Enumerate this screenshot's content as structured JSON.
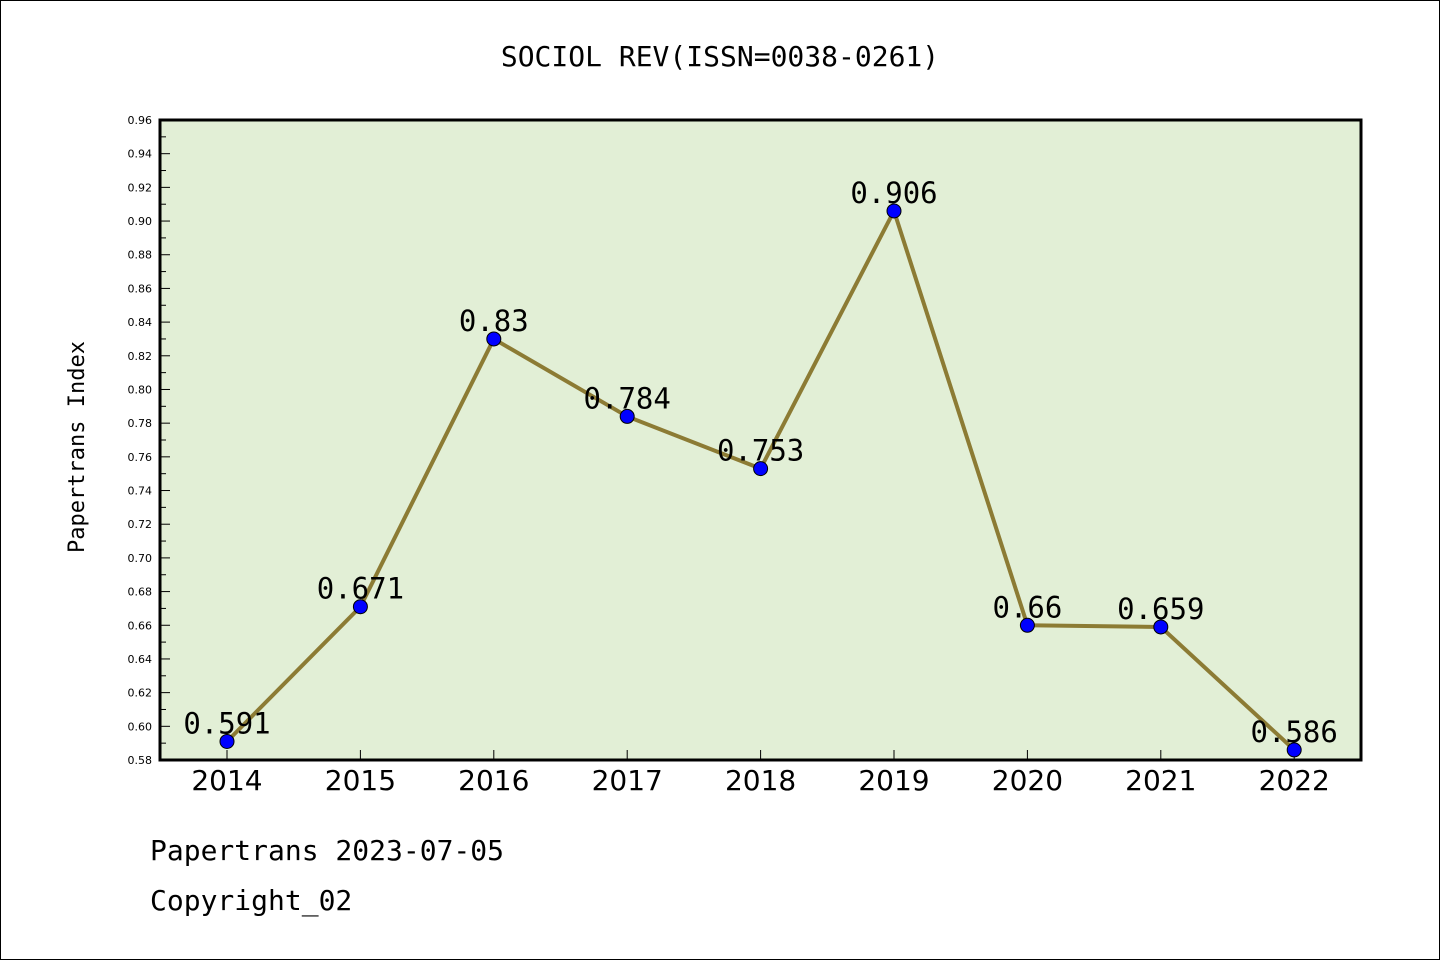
{
  "chart_data": {
    "type": "line",
    "title": "SOCIOL REV(ISSN=0038-0261)",
    "xlabel": "",
    "ylabel": "Papertrans Index",
    "categories": [
      "2014",
      "2015",
      "2016",
      "2017",
      "2018",
      "2019",
      "2020",
      "2021",
      "2022"
    ],
    "series": [
      {
        "values": [
          0.591,
          0.671,
          0.83,
          0.784,
          0.753,
          0.906,
          0.66,
          0.659,
          0.586
        ],
        "labels": [
          "0.591",
          "0.671",
          "0.83",
          "0.784",
          "0.753",
          "0.906",
          "0.66",
          "0.659",
          "0.586"
        ]
      }
    ],
    "ylim": [
      0.58,
      0.96
    ],
    "yticks": [
      "0.58",
      "0.60",
      "0.62",
      "0.64",
      "0.66",
      "0.68",
      "0.70",
      "0.72",
      "0.74",
      "0.76",
      "0.78",
      "0.80",
      "0.82",
      "0.84",
      "0.86",
      "0.88",
      "0.90",
      "0.92",
      "0.94",
      "0.96"
    ],
    "grid": false,
    "colors": {
      "plot_background": "#e2efd6",
      "line": "#8c7b34",
      "marker": "#0000ff"
    }
  },
  "footer": {
    "line1": "Papertrans 2023-07-05",
    "line2": "Copyright_02"
  }
}
